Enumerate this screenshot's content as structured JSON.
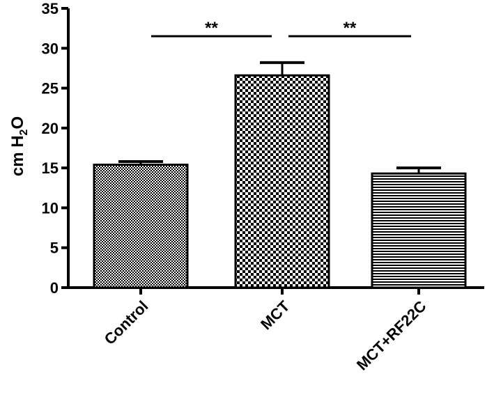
{
  "chart_data": {
    "type": "bar",
    "categories": [
      "Control",
      "MCT",
      "MCT+RF22C"
    ],
    "values": [
      15.4,
      26.6,
      14.3
    ],
    "errors": [
      0.4,
      1.6,
      0.7
    ],
    "patterns": [
      "fine-checker",
      "coarse-checker",
      "horizontal-lines"
    ],
    "ylabel_main": "cm H",
    "ylabel_sub": "2",
    "ylabel_tail": "O",
    "xlabel": "",
    "ylim": [
      0,
      35
    ],
    "yticks": [
      "0",
      "5",
      "10",
      "15",
      "20",
      "25",
      "30",
      "35"
    ],
    "grid": false,
    "significance": [
      {
        "from": 0,
        "to": 1,
        "label": "**"
      },
      {
        "from": 1,
        "to": 2,
        "label": "**"
      }
    ]
  }
}
